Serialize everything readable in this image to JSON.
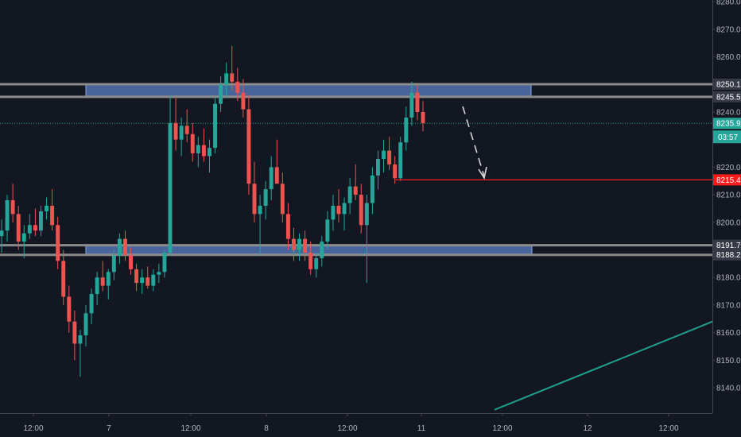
{
  "chart_data": {
    "type": "candlestick",
    "title": "",
    "price_axis": {
      "ticks": [
        8280.0,
        8270.0,
        8260.0,
        8250.1,
        8245.5,
        8240.0,
        8235.9,
        8220.0,
        8215.4,
        8210.0,
        8200.0,
        8191.7,
        8188.2,
        8180.0,
        8170.0,
        8160.0,
        8150.0,
        8140.0
      ],
      "tick_labels": [
        "8280.0",
        "8270.0",
        "8260.0",
        "8250.1",
        "8245.5",
        "8240.0",
        "8235.9",
        "8220.0",
        "8215.4",
        "8210.0",
        "8200.0",
        "8191.7",
        "8188.2",
        "8180.0",
        "8170.0",
        "8160.0",
        "8150.0",
        "8140.0"
      ],
      "range": [
        8132,
        8282
      ]
    },
    "time_axis": {
      "labels": [
        "12:00",
        "7",
        "12:00",
        "8",
        "12:00",
        "11",
        "12:00",
        "12",
        "12:00"
      ]
    },
    "levels": {
      "resistance_upper": 8250.1,
      "resistance_lower": 8245.5,
      "support_upper": 8191.7,
      "support_lower": 8188.2,
      "last_price": 8235.9,
      "marked_price": 8215.4
    },
    "last_price_label": "8235.9",
    "countdown_label": "03:57",
    "marked_price_label": "8215.4",
    "trend_line": {
      "from_price": 8132,
      "to_price": 8164
    },
    "colors": {
      "background": "#131722",
      "up": "#26a69a",
      "down": "#ef5350",
      "zone_fill": "#5b7fc4",
      "level_line": "#8a8a8a",
      "marked_line": "#ff1a1a",
      "trend_line": "#1fa08e"
    },
    "series": [
      {
        "o": 8195,
        "h": 8201,
        "l": 8189,
        "c": 8197
      },
      {
        "o": 8197,
        "h": 8210,
        "l": 8193,
        "c": 8208
      },
      {
        "o": 8208,
        "h": 8214,
        "l": 8200,
        "c": 8203
      },
      {
        "o": 8203,
        "h": 8206,
        "l": 8190,
        "c": 8193
      },
      {
        "o": 8193,
        "h": 8199,
        "l": 8187,
        "c": 8196
      },
      {
        "o": 8196,
        "h": 8203,
        "l": 8194,
        "c": 8199
      },
      {
        "o": 8199,
        "h": 8205,
        "l": 8195,
        "c": 8197
      },
      {
        "o": 8197,
        "h": 8206,
        "l": 8195,
        "c": 8204
      },
      {
        "o": 8204,
        "h": 8209,
        "l": 8201,
        "c": 8206
      },
      {
        "o": 8206,
        "h": 8212,
        "l": 8197,
        "c": 8199
      },
      {
        "o": 8199,
        "h": 8202,
        "l": 8183,
        "c": 8186
      },
      {
        "o": 8186,
        "h": 8190,
        "l": 8170,
        "c": 8173
      },
      {
        "o": 8173,
        "h": 8177,
        "l": 8160,
        "c": 8164
      },
      {
        "o": 8164,
        "h": 8168,
        "l": 8150,
        "c": 8156
      },
      {
        "o": 8156,
        "h": 8161,
        "l": 8144,
        "c": 8159
      },
      {
        "o": 8159,
        "h": 8170,
        "l": 8155,
        "c": 8167
      },
      {
        "o": 8167,
        "h": 8176,
        "l": 8163,
        "c": 8174
      },
      {
        "o": 8174,
        "h": 8182,
        "l": 8170,
        "c": 8180
      },
      {
        "o": 8180,
        "h": 8186,
        "l": 8175,
        "c": 8177
      },
      {
        "o": 8177,
        "h": 8183,
        "l": 8172,
        "c": 8182
      },
      {
        "o": 8182,
        "h": 8190,
        "l": 8179,
        "c": 8188
      },
      {
        "o": 8188,
        "h": 8196,
        "l": 8185,
        "c": 8194
      },
      {
        "o": 8194,
        "h": 8197,
        "l": 8186,
        "c": 8188
      },
      {
        "o": 8188,
        "h": 8191,
        "l": 8181,
        "c": 8183
      },
      {
        "o": 8183,
        "h": 8185,
        "l": 8175,
        "c": 8178
      },
      {
        "o": 8178,
        "h": 8183,
        "l": 8174,
        "c": 8180
      },
      {
        "o": 8180,
        "h": 8184,
        "l": 8176,
        "c": 8177
      },
      {
        "o": 8177,
        "h": 8183,
        "l": 8175,
        "c": 8181
      },
      {
        "o": 8181,
        "h": 8185,
        "l": 8178,
        "c": 8182
      },
      {
        "o": 8182,
        "h": 8190,
        "l": 8180,
        "c": 8189
      },
      {
        "o": 8189,
        "h": 8246,
        "l": 8188,
        "c": 8236
      },
      {
        "o": 8236,
        "h": 8245,
        "l": 8226,
        "c": 8230
      },
      {
        "o": 8230,
        "h": 8238,
        "l": 8224,
        "c": 8235
      },
      {
        "o": 8235,
        "h": 8241,
        "l": 8229,
        "c": 8232
      },
      {
        "o": 8232,
        "h": 8236,
        "l": 8222,
        "c": 8225
      },
      {
        "o": 8225,
        "h": 8231,
        "l": 8220,
        "c": 8228
      },
      {
        "o": 8228,
        "h": 8234,
        "l": 8222,
        "c": 8224
      },
      {
        "o": 8224,
        "h": 8230,
        "l": 8218,
        "c": 8227
      },
      {
        "o": 8227,
        "h": 8245,
        "l": 8225,
        "c": 8243
      },
      {
        "o": 8243,
        "h": 8253,
        "l": 8240,
        "c": 8250
      },
      {
        "o": 8250,
        "h": 8258,
        "l": 8245,
        "c": 8254
      },
      {
        "o": 8254,
        "h": 8264,
        "l": 8248,
        "c": 8251
      },
      {
        "o": 8251,
        "h": 8256,
        "l": 8244,
        "c": 8247
      },
      {
        "o": 8247,
        "h": 8252,
        "l": 8238,
        "c": 8241
      },
      {
        "o": 8241,
        "h": 8246,
        "l": 8210,
        "c": 8214
      },
      {
        "o": 8214,
        "h": 8222,
        "l": 8200,
        "c": 8203
      },
      {
        "o": 8203,
        "h": 8210,
        "l": 8188,
        "c": 8206
      },
      {
        "o": 8206,
        "h": 8215,
        "l": 8201,
        "c": 8212
      },
      {
        "o": 8212,
        "h": 8224,
        "l": 8208,
        "c": 8220
      },
      {
        "o": 8220,
        "h": 8230,
        "l": 8216,
        "c": 8214
      },
      {
        "o": 8214,
        "h": 8218,
        "l": 8200,
        "c": 8203
      },
      {
        "o": 8203,
        "h": 8207,
        "l": 8190,
        "c": 8194
      },
      {
        "o": 8194,
        "h": 8198,
        "l": 8186,
        "c": 8190
      },
      {
        "o": 8190,
        "h": 8196,
        "l": 8186,
        "c": 8194
      },
      {
        "o": 8194,
        "h": 8197,
        "l": 8186,
        "c": 8189
      },
      {
        "o": 8189,
        "h": 8193,
        "l": 8181,
        "c": 8183
      },
      {
        "o": 8183,
        "h": 8189,
        "l": 8180,
        "c": 8187
      },
      {
        "o": 8187,
        "h": 8195,
        "l": 8184,
        "c": 8193
      },
      {
        "o": 8193,
        "h": 8204,
        "l": 8190,
        "c": 8201
      },
      {
        "o": 8201,
        "h": 8210,
        "l": 8197,
        "c": 8206
      },
      {
        "o": 8206,
        "h": 8212,
        "l": 8200,
        "c": 8203
      },
      {
        "o": 8203,
        "h": 8209,
        "l": 8197,
        "c": 8207
      },
      {
        "o": 8207,
        "h": 8216,
        "l": 8203,
        "c": 8213
      },
      {
        "o": 8213,
        "h": 8221,
        "l": 8208,
        "c": 8210
      },
      {
        "o": 8210,
        "h": 8214,
        "l": 8196,
        "c": 8199
      },
      {
        "o": 8199,
        "h": 8210,
        "l": 8178,
        "c": 8207
      },
      {
        "o": 8207,
        "h": 8220,
        "l": 8203,
        "c": 8217
      },
      {
        "o": 8217,
        "h": 8226,
        "l": 8212,
        "c": 8223
      },
      {
        "o": 8223,
        "h": 8230,
        "l": 8218,
        "c": 8226
      },
      {
        "o": 8226,
        "h": 8231,
        "l": 8219,
        "c": 8221
      },
      {
        "o": 8221,
        "h": 8224,
        "l": 8214,
        "c": 8216
      },
      {
        "o": 8216,
        "h": 8231,
        "l": 8215,
        "c": 8229
      },
      {
        "o": 8229,
        "h": 8242,
        "l": 8226,
        "c": 8238
      },
      {
        "o": 8238,
        "h": 8251,
        "l": 8235,
        "c": 8247
      },
      {
        "o": 8247,
        "h": 8250,
        "l": 8237,
        "c": 8240
      },
      {
        "o": 8240,
        "h": 8244,
        "l": 8233,
        "c": 8236
      }
    ]
  }
}
